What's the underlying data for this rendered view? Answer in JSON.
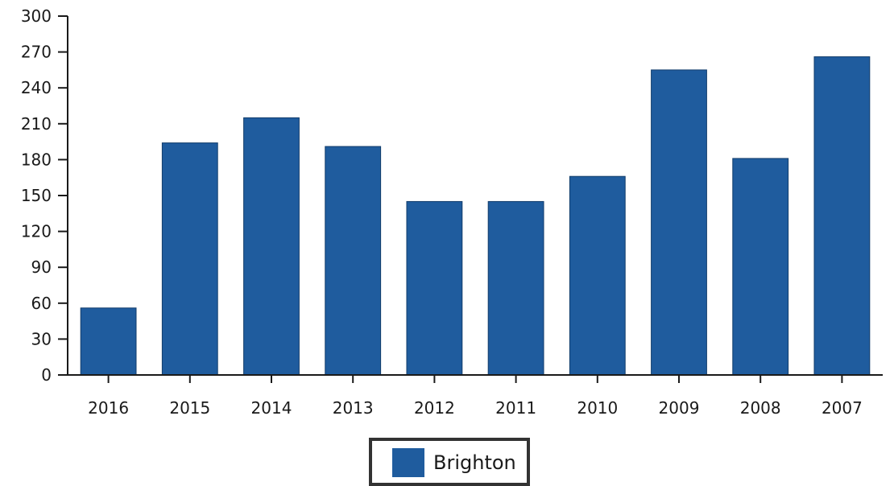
{
  "chart_data": {
    "type": "bar",
    "categories": [
      "2016",
      "2015",
      "2014",
      "2013",
      "2012",
      "2011",
      "2010",
      "2009",
      "2008",
      "2007"
    ],
    "series": [
      {
        "name": "Brighton",
        "values": [
          56,
          194,
          215,
          191,
          145,
          145,
          166,
          255,
          181,
          266
        ]
      }
    ],
    "ylim": [
      0,
      300
    ],
    "yticks": [
      0,
      30,
      60,
      90,
      120,
      150,
      180,
      210,
      240,
      270,
      300
    ],
    "grid": false,
    "legend": "bottom-center",
    "bar_color": "#1f5c9e",
    "axis_color": "#1a1a1a"
  }
}
